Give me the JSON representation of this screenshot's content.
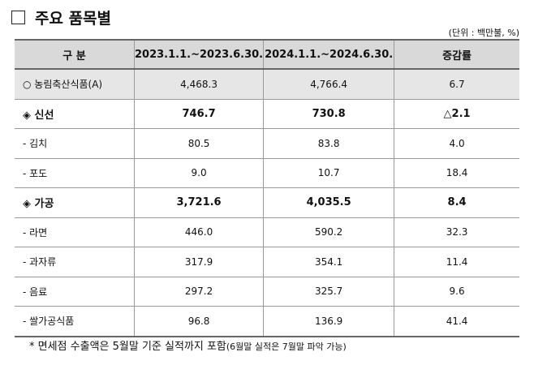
{
  "header": {
    "title": "주요 품목별",
    "unit": "(단위 : 백만불, %)"
  },
  "table": {
    "columns": [
      "구 분",
      "2023.1.1.~2023.6.30.",
      "2024.1.1.~2024.6.30.",
      "증감률"
    ],
    "rows": [
      [
        "○ 농림축산식품(A)",
        "4,468.3",
        "4,766.4",
        "6.7"
      ],
      [
        "◈ 신선",
        "746.7",
        "730.8",
        "△2.1"
      ],
      [
        "- 김치",
        "80.5",
        "83.8",
        "4.0"
      ],
      [
        "- 포도",
        "9.0",
        "10.7",
        "18.4"
      ],
      [
        "◈ 가공",
        "3,721.6",
        "4,035.5",
        "8.4"
      ],
      [
        "- 라면",
        "446.0",
        "590.2",
        "32.3"
      ],
      [
        "- 과자류",
        "317.9",
        "354.1",
        "11.4"
      ],
      [
        "- 음료",
        "297.2",
        "325.7",
        "9.6"
      ],
      [
        "- 쌀가공식품",
        "96.8",
        "136.9",
        "41.4"
      ]
    ]
  },
  "footnote": {
    "main": "*  면세점 수출액은 5월말 기준 실적까지 포함",
    "detail": "(6월말 실적은 7월말 파악 가능)"
  }
}
